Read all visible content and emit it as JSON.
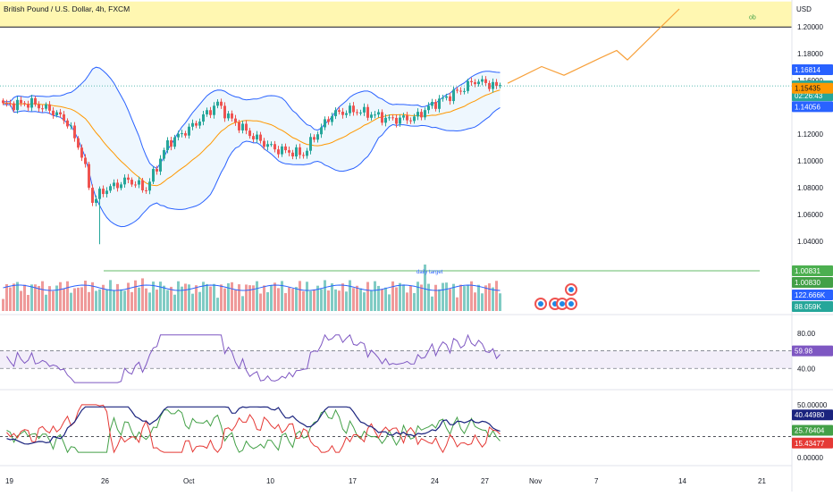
{
  "header": {
    "title": "British Pound / U.S. Dollar, 4h, FXCM",
    "currency": "USD"
  },
  "ob_label": "ob",
  "daily_target_label": "daily target",
  "colors": {
    "up": "#26a69a",
    "down": "#ef5350",
    "band": "#2962ff",
    "band_fill": "#2196f3",
    "basis": "#ff9800",
    "zone_fill": "#fff59d",
    "rsi": "#7e57c2",
    "rsi_fill": "#7e57c2",
    "di_plus": "#43a047",
    "di_minus": "#e53935",
    "adx": "#1a237e",
    "projection": "#f7a03a",
    "vol_up": "#80cbc4",
    "vol_down": "#ef9a9a",
    "vol_ma": "#2962ff",
    "target_line": "#66bb6a"
  },
  "chart_data": {
    "type": "candlestick",
    "symbol": "British Pound / U.S. Dollar",
    "timeframe": "4h",
    "source": "FXCM",
    "price_axis": {
      "ticks": [
        "1.20000",
        "1.18000",
        "1.16000",
        "1.14000",
        "1.12000",
        "1.10000",
        "1.08000",
        "1.06000",
        "1.04000",
        "1.02000"
      ],
      "range": [
        1.0135,
        1.2188
      ]
    },
    "x_axis_labels": [
      "19",
      "26",
      "Oct",
      "10",
      "17",
      "24",
      "27",
      "Nov",
      "7",
      "14",
      "21"
    ],
    "ohlc_anchors": [
      {
        "i": 0,
        "c": 1.1418
      },
      {
        "i": 8,
        "c": 1.1432
      },
      {
        "i": 14,
        "c": 1.137
      },
      {
        "i": 18,
        "c": 1.129
      },
      {
        "i": 22,
        "c": 1.105
      },
      {
        "i": 25,
        "c": 1.07
      },
      {
        "i": 28,
        "c": 1.078
      },
      {
        "i": 35,
        "c": 1.086
      },
      {
        "i": 40,
        "c": 1.079
      },
      {
        "i": 46,
        "c": 1.113
      },
      {
        "i": 53,
        "c": 1.126
      },
      {
        "i": 60,
        "c": 1.143
      },
      {
        "i": 63,
        "c": 1.133
      },
      {
        "i": 70,
        "c": 1.118
      },
      {
        "i": 76,
        "c": 1.109
      },
      {
        "i": 84,
        "c": 1.105
      },
      {
        "i": 87,
        "c": 1.118
      },
      {
        "i": 92,
        "c": 1.135
      },
      {
        "i": 98,
        "c": 1.138
      },
      {
        "i": 103,
        "c": 1.135
      },
      {
        "i": 108,
        "c": 1.131
      },
      {
        "i": 115,
        "c": 1.132
      },
      {
        "i": 120,
        "c": 1.142
      },
      {
        "i": 128,
        "c": 1.153
      },
      {
        "i": 132,
        "c": 1.16
      },
      {
        "i": 138,
        "c": 1.156
      }
    ],
    "spike_low": {
      "i": 27,
      "l": 1.038
    },
    "bollinger_bands": {
      "upper_last": 1.16814,
      "basis_last": 1.15435,
      "lower_last": 1.14056
    },
    "last_price": "1.15605",
    "countdown": "02:26:43",
    "resistance_zone": [
      1.2,
      1.219
    ],
    "projection_path": [
      {
        "x": "27",
        "y": 1.158
      },
      {
        "x": "29",
        "y": 1.1705
      },
      {
        "x": "Nov 2",
        "y": 1.164
      },
      {
        "x": "Nov 5",
        "y": 1.177
      },
      {
        "x": "Nov 7",
        "y": 1.1825
      },
      {
        "x": "Nov 9",
        "y": 1.1755
      },
      {
        "x": "Nov 14",
        "y": 1.2135
      }
    ],
    "volume": {
      "ma_label": "122.666K",
      "last_label": "88.059K",
      "target_labels": [
        "1.00831",
        "1.00830"
      ]
    },
    "rsi": {
      "ticks": [
        "80.00",
        "40.00"
      ],
      "value": "59.98",
      "bands": [
        40,
        60
      ],
      "range": [
        20,
        90
      ]
    },
    "dmi": {
      "ticks": [
        "50.00000",
        "0.00000"
      ],
      "adx": "40.44980",
      "di_plus": "25.76404",
      "di_minus": "15.43477",
      "range": [
        0,
        55
      ],
      "threshold": 20
    }
  },
  "price_tags": {
    "upper": "1.16814",
    "last": "1.15605",
    "countdown": "02:26:43",
    "basis": "1.15435",
    "lower": "1.14056"
  }
}
